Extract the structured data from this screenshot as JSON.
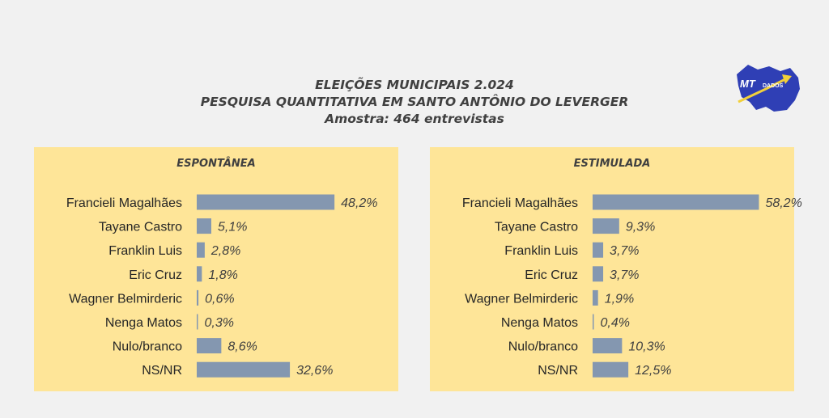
{
  "header": {
    "line1": "ELEIÇÕES MUNICIPAIS 2.024",
    "line2": "PESQUISA QUANTITATIVA EM SANTO ANTÔNIO DO LEVERGER",
    "line3": "Amostra: 464  entrevistas"
  },
  "logo": {
    "text_mt": "MT",
    "text_dados": "DADOS"
  },
  "colors": {
    "bar": "#8497b0",
    "panel": "#fee598",
    "text": "#262626",
    "value": "#404040"
  },
  "chart_data": [
    {
      "type": "bar",
      "orientation": "horizontal",
      "title": "ESPONTÂNEA",
      "categories": [
        "Francieli Magalhães",
        "Tayane Castro",
        "Franklin Luis",
        "Eric Cruz",
        "Wagner Belmirderic",
        "Nenga Matos",
        "Nulo/branco",
        "NS/NR"
      ],
      "values": [
        48.2,
        5.1,
        2.8,
        1.8,
        0.6,
        0.3,
        8.6,
        32.6
      ],
      "labels": [
        "48,2%",
        "5,1%",
        "2,8%",
        "1,8%",
        "0,6%",
        "0,3%",
        "8,6%",
        "32,6%"
      ]
    },
    {
      "type": "bar",
      "orientation": "horizontal",
      "title": "ESTIMULADA",
      "categories": [
        "Francieli Magalhães",
        "Tayane Castro",
        "Franklin Luis",
        "Eric Cruz",
        "Wagner Belmirderic",
        "Nenga Matos",
        "Nulo/branco",
        "NS/NR"
      ],
      "values": [
        58.2,
        9.3,
        3.7,
        3.7,
        1.9,
        0.4,
        10.3,
        12.5
      ],
      "labels": [
        "58,2%",
        "9,3%",
        "3,7%",
        "3,7%",
        "1,9%",
        "0,4%",
        "10,3%",
        "12,5%"
      ]
    }
  ]
}
